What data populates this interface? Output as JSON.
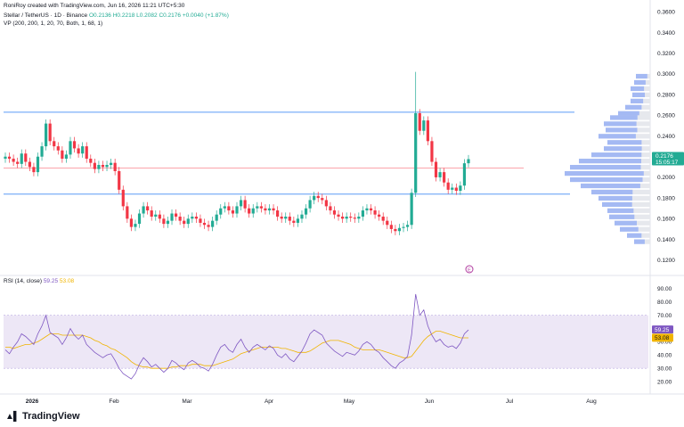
{
  "credit": "RoniRoy created with TradingView.com, Jun 16, 2026 11:21 UTC+5:30",
  "legend": {
    "symbol": "Stellar / TetherUS · 1D · Binance",
    "o": "O0.2136",
    "h": "H0.2218",
    "l": "L0.2082",
    "c": "C0.2176",
    "chg": "+0.0040 (+1.87%)",
    "vp": "VP (200, 200, 1, 20, 70, Both, 1, 68, 1)",
    "rsi_label": "RSI (14, close)",
    "rsi_value": "59.25",
    "rsi_ma": "53.08"
  },
  "brand": "TradingView",
  "event_marker": "E",
  "price_badge": {
    "price": "0.2176",
    "countdown": "15:05:17"
  },
  "rsi_badges": {
    "rsi": "59.25",
    "ma": "53.08"
  },
  "colors": {
    "up": "#22ab94",
    "down": "#f23645",
    "hline_blue": "#5b9cf6",
    "hline_red": "#f7525f",
    "rsi": "#7e57c2",
    "rsi_ma": "#f0b400",
    "rsi_band": "#ede7f6",
    "vp_up": "#2962ff",
    "vp_gray": "#b2b5be"
  },
  "chart_data": [
    {
      "type": "candlestick",
      "title": "Stellar / TetherUS · 1D · Binance",
      "x_labels": [
        "2026",
        "Feb",
        "Mar",
        "Apr",
        "May",
        "Jun",
        "Jul",
        "Aug"
      ],
      "y_ticks": [
        "0.3600",
        "0.3400",
        "0.3200",
        "0.3000",
        "0.2800",
        "0.2600",
        "0.2400",
        "0.2200",
        "0.2000",
        "0.1800",
        "0.1600",
        "0.1400",
        "0.1200"
      ],
      "ylim": [
        0.112,
        0.362
      ],
      "series": [
        {
          "close": [
            0.22,
            0.218,
            0.215,
            0.213,
            0.223,
            0.215,
            0.21,
            0.205,
            0.22,
            0.23,
            0.252,
            0.235,
            0.23,
            0.226,
            0.218,
            0.222,
            0.235,
            0.228,
            0.223,
            0.23,
            0.218,
            0.214,
            0.208,
            0.212,
            0.21,
            0.212,
            0.214,
            0.206,
            0.188,
            0.172,
            0.16,
            0.152,
            0.155,
            0.165,
            0.172,
            0.168,
            0.162,
            0.164,
            0.16,
            0.155,
            0.158,
            0.165,
            0.162,
            0.158,
            0.155,
            0.16,
            0.162,
            0.16,
            0.156,
            0.154,
            0.152,
            0.158,
            0.164,
            0.17,
            0.172,
            0.168,
            0.165,
            0.172,
            0.178,
            0.17,
            0.165,
            0.17,
            0.172,
            0.17,
            0.168,
            0.17,
            0.168,
            0.162,
            0.16,
            0.162,
            0.158,
            0.156,
            0.16,
            0.164,
            0.17,
            0.178,
            0.182,
            0.18,
            0.178,
            0.172,
            0.168,
            0.164,
            0.162,
            0.16,
            0.162,
            0.161,
            0.16,
            0.162,
            0.168,
            0.17,
            0.168,
            0.164,
            0.162,
            0.158,
            0.154,
            0.15,
            0.148,
            0.151,
            0.152,
            0.154,
            0.185,
            0.262,
            0.245,
            0.255,
            0.235,
            0.215,
            0.2,
            0.205,
            0.195,
            0.188,
            0.19,
            0.187,
            0.192,
            0.2136,
            0.2176
          ]
        }
      ]
    },
    {
      "type": "line",
      "title": "RSI (14, close)",
      "y_ticks": [
        "90.00",
        "80.00",
        "70.00",
        "60.00",
        "50.00",
        "40.00",
        "30.00",
        "20.00"
      ],
      "ylim": [
        16,
        94
      ],
      "band": [
        30,
        70
      ],
      "series": [
        {
          "name": "RSI",
          "values": [
            44,
            41,
            46,
            50,
            56,
            54,
            51,
            48,
            56,
            62,
            70,
            57,
            55,
            53,
            48,
            53,
            60,
            55,
            52,
            55,
            48,
            45,
            42,
            40,
            38,
            40,
            41,
            36,
            30,
            26,
            24,
            22,
            26,
            33,
            38,
            35,
            31,
            33,
            30,
            27,
            30,
            36,
            34,
            31,
            29,
            34,
            36,
            34,
            31,
            30,
            28,
            33,
            40,
            46,
            48,
            44,
            42,
            48,
            52,
            46,
            42,
            46,
            48,
            46,
            44,
            47,
            45,
            40,
            38,
            41,
            37,
            35,
            39,
            43,
            49,
            56,
            59,
            57,
            55,
            49,
            46,
            43,
            41,
            39,
            42,
            41,
            40,
            43,
            48,
            50,
            48,
            44,
            42,
            38,
            35,
            32,
            30,
            34,
            36,
            39,
            55,
            86,
            70,
            74,
            62,
            55,
            50,
            52,
            48,
            46,
            47,
            45,
            49,
            56,
            59
          ]
        },
        {
          "name": "RSI-based MA",
          "values": [
            46,
            46,
            45,
            46,
            47,
            48,
            48,
            49,
            50,
            52,
            54,
            56,
            56,
            56,
            55,
            55,
            55,
            55,
            55,
            55,
            54,
            53,
            51,
            50,
            48,
            47,
            45,
            44,
            42,
            40,
            38,
            35,
            33,
            32,
            31,
            31,
            30,
            30,
            30,
            30,
            30,
            31,
            31,
            32,
            32,
            32,
            33,
            33,
            33,
            32,
            32,
            32,
            33,
            34,
            35,
            36,
            37,
            39,
            41,
            42,
            43,
            44,
            45,
            46,
            46,
            46,
            46,
            46,
            45,
            45,
            44,
            43,
            42,
            42,
            42,
            43,
            45,
            47,
            49,
            50,
            51,
            51,
            51,
            50,
            49,
            48,
            46,
            45,
            44,
            44,
            44,
            44,
            44,
            43,
            42,
            41,
            40,
            39,
            38,
            38,
            39,
            43,
            47,
            51,
            54,
            56,
            58,
            58,
            57,
            56,
            55,
            54,
            53,
            53,
            53
          ]
        }
      ]
    }
  ]
}
